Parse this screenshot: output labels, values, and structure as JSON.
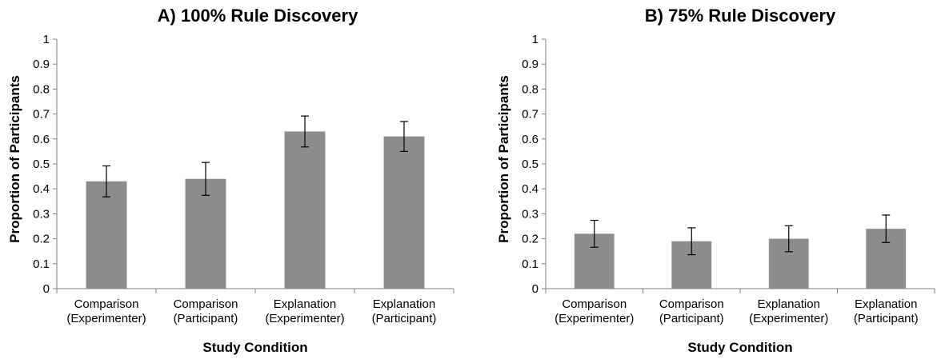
{
  "chart_data": [
    {
      "type": "bar",
      "title": "A) 100% Rule Discovery",
      "xlabel": "Study Condition",
      "ylabel": "Proportion of Participants",
      "ylim": [
        0,
        1
      ],
      "yticks": [
        "0",
        "0.1",
        "0.2",
        "0.3",
        "0.4",
        "0.5",
        "0.6",
        "0.7",
        "0.8",
        "0.9",
        "1"
      ],
      "categories": [
        [
          "Comparison",
          "(Experimenter)"
        ],
        [
          "Comparison",
          "(Participant)"
        ],
        [
          "Explanation",
          "(Experimenter)"
        ],
        [
          "Explanation",
          "(Participant)"
        ]
      ],
      "values": [
        0.43,
        0.44,
        0.63,
        0.61
      ],
      "errors": [
        0.062,
        0.066,
        0.062,
        0.06
      ],
      "bar_color": "#8c8c8c",
      "grid": false,
      "legend": "none"
    },
    {
      "type": "bar",
      "title": "B) 75% Rule Discovery",
      "xlabel": "Study Condition",
      "ylabel": "Proportion of Participants",
      "ylim": [
        0,
        1
      ],
      "yticks": [
        "0",
        "0.1",
        "0.2",
        "0.3",
        "0.4",
        "0.5",
        "0.6",
        "0.7",
        "0.8",
        "0.9",
        "1"
      ],
      "categories": [
        [
          "Comparison",
          "(Experimenter)"
        ],
        [
          "Comparison",
          "(Participant)"
        ],
        [
          "Explanation",
          "(Experimenter)"
        ],
        [
          "Explanation",
          "(Participant)"
        ]
      ],
      "values": [
        0.22,
        0.19,
        0.2,
        0.24
      ],
      "errors": [
        0.054,
        0.054,
        0.052,
        0.055
      ],
      "bar_color": "#8c8c8c",
      "grid": false,
      "legend": "none"
    }
  ]
}
